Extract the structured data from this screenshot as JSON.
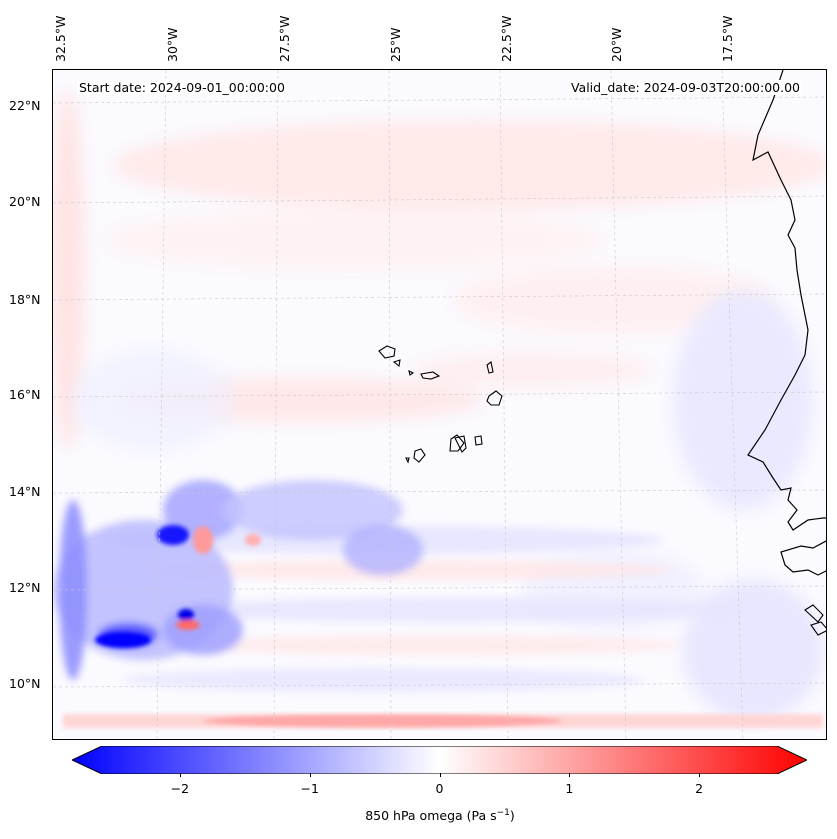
{
  "map": {
    "start_date": "Start date: 2024-09-01_00:00:00",
    "valid_date": "Valid_date: 2024-09-03T20:00:00.00",
    "longitude_labels": [
      "32.5°W",
      "30°W",
      "27.5°W",
      "25°W",
      "22.5°W",
      "20°W",
      "17.5°W"
    ],
    "latitude_labels": [
      "22°N",
      "20°N",
      "18°N",
      "16°N",
      "14°N",
      "12°N",
      "10°N"
    ],
    "features": [
      "coastline-africa",
      "cape-verde-islands",
      "gridlines"
    ]
  },
  "colorbar": {
    "label_prefix": "850 hPa omega (Pa s",
    "label_exponent": "−1",
    "label_suffix": ")",
    "ticks": [
      "−2",
      "−1",
      "0",
      "1",
      "2"
    ],
    "tick_values": [
      -2,
      -1,
      0,
      1,
      2
    ],
    "range": [
      -2.6,
      2.6
    ],
    "cmap_low": "#0000ff",
    "cmap_mid": "#ffffff",
    "cmap_high": "#ff0000"
  }
}
